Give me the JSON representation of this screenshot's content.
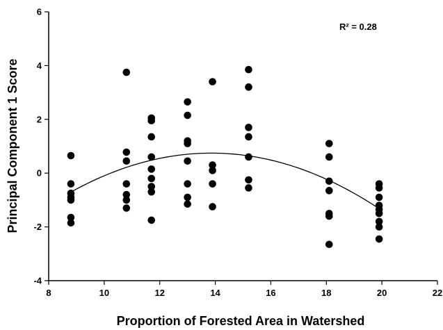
{
  "chart_data": {
    "type": "scatter",
    "title": "",
    "xlabel": "Proportion of Forested Area in Watershed",
    "ylabel": "Principal Component 1 Score",
    "xlim": [
      8,
      22
    ],
    "ylim": [
      -4,
      6
    ],
    "x_ticks": [
      "8",
      "10",
      "12",
      "14",
      "16",
      "18",
      "20",
      "22"
    ],
    "y_ticks": [
      "-4",
      "-2",
      "0",
      "2",
      "4",
      "6"
    ],
    "grid": false,
    "legend": "none",
    "annotation": "R² = 0.28",
    "marker_color": "#000000",
    "points": [
      {
        "x": 8.8,
        "y": 0.65
      },
      {
        "x": 8.8,
        "y": -0.4
      },
      {
        "x": 8.8,
        "y": -0.75
      },
      {
        "x": 8.8,
        "y": -0.9
      },
      {
        "x": 8.8,
        "y": -1.0
      },
      {
        "x": 8.8,
        "y": -1.65
      },
      {
        "x": 8.8,
        "y": -1.85
      },
      {
        "x": 10.8,
        "y": 3.75
      },
      {
        "x": 10.8,
        "y": 0.78
      },
      {
        "x": 10.8,
        "y": 0.45
      },
      {
        "x": 10.8,
        "y": -0.4
      },
      {
        "x": 10.8,
        "y": -0.8
      },
      {
        "x": 10.8,
        "y": -1.0
      },
      {
        "x": 10.8,
        "y": -1.3
      },
      {
        "x": 11.7,
        "y": 2.05
      },
      {
        "x": 11.7,
        "y": 1.95
      },
      {
        "x": 11.7,
        "y": 1.35
      },
      {
        "x": 11.7,
        "y": 0.6
      },
      {
        "x": 11.7,
        "y": 0.15
      },
      {
        "x": 11.7,
        "y": -0.2
      },
      {
        "x": 11.7,
        "y": -0.5
      },
      {
        "x": 11.7,
        "y": -0.7
      },
      {
        "x": 11.7,
        "y": -1.75
      },
      {
        "x": 13.0,
        "y": 2.65
      },
      {
        "x": 13.0,
        "y": 2.15
      },
      {
        "x": 13.0,
        "y": 1.2
      },
      {
        "x": 13.0,
        "y": 1.1
      },
      {
        "x": 13.0,
        "y": 0.45
      },
      {
        "x": 13.0,
        "y": -0.4
      },
      {
        "x": 13.0,
        "y": -0.9
      },
      {
        "x": 13.0,
        "y": -1.15
      },
      {
        "x": 13.9,
        "y": 3.4
      },
      {
        "x": 13.9,
        "y": 0.3
      },
      {
        "x": 13.9,
        "y": 0.1
      },
      {
        "x": 13.9,
        "y": -0.4
      },
      {
        "x": 13.9,
        "y": -1.25
      },
      {
        "x": 15.2,
        "y": 3.85
      },
      {
        "x": 15.2,
        "y": 3.2
      },
      {
        "x": 15.2,
        "y": 1.7
      },
      {
        "x": 15.2,
        "y": 1.35
      },
      {
        "x": 15.2,
        "y": 0.6
      },
      {
        "x": 15.2,
        "y": -0.25
      },
      {
        "x": 15.2,
        "y": -0.55
      },
      {
        "x": 18.1,
        "y": 1.1
      },
      {
        "x": 18.1,
        "y": 0.6
      },
      {
        "x": 18.1,
        "y": -0.3
      },
      {
        "x": 18.1,
        "y": -0.65
      },
      {
        "x": 18.1,
        "y": -1.5
      },
      {
        "x": 18.1,
        "y": -1.6
      },
      {
        "x": 18.1,
        "y": -2.65
      },
      {
        "x": 19.9,
        "y": -0.4
      },
      {
        "x": 19.9,
        "y": -0.55
      },
      {
        "x": 19.9,
        "y": -0.9
      },
      {
        "x": 19.9,
        "y": -1.2
      },
      {
        "x": 19.9,
        "y": -1.35
      },
      {
        "x": 19.9,
        "y": -1.5
      },
      {
        "x": 19.9,
        "y": -1.8
      },
      {
        "x": 19.9,
        "y": -2.0
      },
      {
        "x": 19.9,
        "y": -2.45
      }
    ],
    "fit": {
      "type": "quadratic",
      "x_range": [
        8.8,
        19.9
      ],
      "coefficients": [
        -0.0566,
        1.5689,
        -10.1275
      ]
    }
  }
}
